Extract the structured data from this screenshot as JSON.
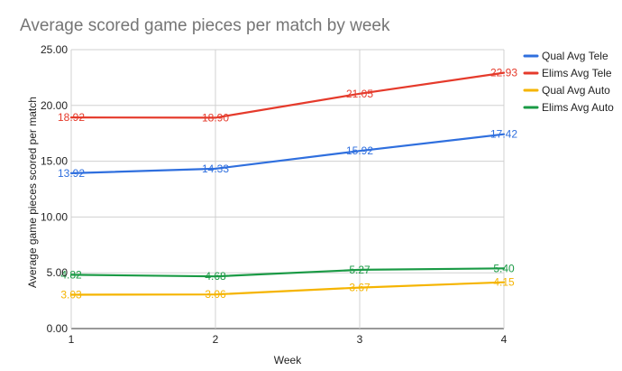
{
  "chart_data": {
    "type": "line",
    "title": "Average scored game pieces per match by week",
    "xlabel": "Week",
    "ylabel": "Average game pieces scored per match",
    "x": [
      1,
      2,
      3,
      4
    ],
    "x_tick_labels": [
      "1",
      "2",
      "3",
      "4"
    ],
    "ylim": [
      0,
      25
    ],
    "y_tick_labels": [
      "0.00",
      "5.00",
      "10.00",
      "15.00",
      "20.00",
      "25.00"
    ],
    "grid": true,
    "legend_position": "right",
    "series": [
      {
        "name": "Qual Avg Tele",
        "color": "#2f6fde",
        "values": [
          13.92,
          14.33,
          15.92,
          17.42
        ],
        "labels": [
          "13.92",
          "14.33",
          "15.92",
          "17.42"
        ]
      },
      {
        "name": "Elims Avg Tele",
        "color": "#e53a2b",
        "values": [
          18.92,
          18.9,
          21.05,
          22.93
        ],
        "labels": [
          "18.92",
          "18.90",
          "21.05",
          "22.93"
        ]
      },
      {
        "name": "Qual Avg Auto",
        "color": "#f5b400",
        "values": [
          3.03,
          3.06,
          3.67,
          4.15
        ],
        "labels": [
          "3.03",
          "3.06",
          "3.67",
          "4.15"
        ]
      },
      {
        "name": "Elims Avg Auto",
        "color": "#1a9a45",
        "values": [
          4.82,
          4.68,
          5.27,
          5.4
        ],
        "labels": [
          "4.82",
          "4.68",
          "5.27",
          "5.40"
        ]
      }
    ]
  }
}
